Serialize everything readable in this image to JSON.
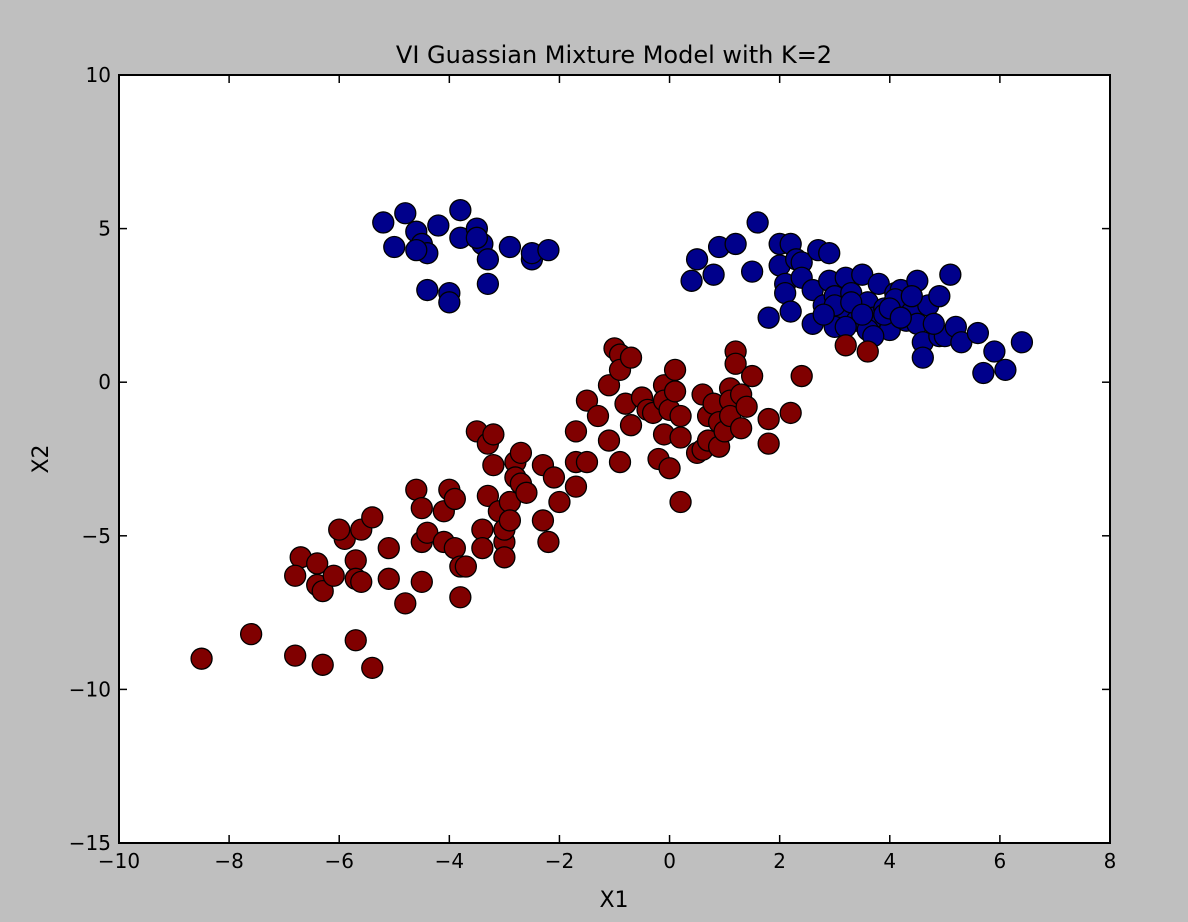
{
  "chart_data": {
    "type": "scatter",
    "title": "VI Guassian Mixture Model with K=2",
    "xlabel": "X1",
    "ylabel": "X2",
    "xlim": [
      -10,
      8
    ],
    "ylim": [
      -15,
      10
    ],
    "xticks": [
      -10,
      -8,
      -6,
      -4,
      -2,
      0,
      2,
      4,
      6,
      8
    ],
    "yticks": [
      -15,
      -10,
      -5,
      0,
      5,
      10
    ],
    "grid": false,
    "colors": {
      "cluster_blue": "#00008b",
      "cluster_red": "#800000",
      "edge": "#000000",
      "axes_bg": "#ffffff",
      "figure_bg": "#bfbfbf"
    },
    "series": [
      {
        "color": "#00008b",
        "points": [
          [
            -5.2,
            5.2
          ],
          [
            -4.8,
            5.5
          ],
          [
            -5.0,
            4.4
          ],
          [
            -4.6,
            4.9
          ],
          [
            -4.5,
            4.5
          ],
          [
            -4.4,
            4.2
          ],
          [
            -4.6,
            4.3
          ],
          [
            -4.2,
            5.1
          ],
          [
            -3.8,
            5.6
          ],
          [
            -3.8,
            4.7
          ],
          [
            -3.5,
            5.0
          ],
          [
            -3.4,
            4.5
          ],
          [
            -3.3,
            4.0
          ],
          [
            -3.5,
            4.7
          ],
          [
            -2.9,
            4.4
          ],
          [
            -2.5,
            4.0
          ],
          [
            -2.5,
            4.2
          ],
          [
            -2.2,
            4.3
          ],
          [
            -4.4,
            3.0
          ],
          [
            -4.0,
            2.9
          ],
          [
            -4.0,
            2.6
          ],
          [
            -3.3,
            3.2
          ],
          [
            0.4,
            3.3
          ],
          [
            0.5,
            4.0
          ],
          [
            0.8,
            3.5
          ],
          [
            0.9,
            4.4
          ],
          [
            1.2,
            4.5
          ],
          [
            1.5,
            3.6
          ],
          [
            1.6,
            5.2
          ],
          [
            1.8,
            2.1
          ],
          [
            2.0,
            4.5
          ],
          [
            2.0,
            3.8
          ],
          [
            2.1,
            3.2
          ],
          [
            2.2,
            4.5
          ],
          [
            2.1,
            2.9
          ],
          [
            2.2,
            2.3
          ],
          [
            2.3,
            4.0
          ],
          [
            2.4,
            3.9
          ],
          [
            2.4,
            3.4
          ],
          [
            2.6,
            3.0
          ],
          [
            2.7,
            4.3
          ],
          [
            2.8,
            2.5
          ],
          [
            2.9,
            4.2
          ],
          [
            2.9,
            3.3
          ],
          [
            3.0,
            2.8
          ],
          [
            3.1,
            2.2
          ],
          [
            3.0,
            1.8
          ],
          [
            3.2,
            3.4
          ],
          [
            3.3,
            2.9
          ],
          [
            3.4,
            2.0
          ],
          [
            3.5,
            3.5
          ],
          [
            3.6,
            2.6
          ],
          [
            3.7,
            2.1
          ],
          [
            3.8,
            3.2
          ],
          [
            3.9,
            2.4
          ],
          [
            4.0,
            1.7
          ],
          [
            4.1,
            2.9
          ],
          [
            4.2,
            3.0
          ],
          [
            4.3,
            2.0
          ],
          [
            4.4,
            2.3
          ],
          [
            4.5,
            3.3
          ],
          [
            4.5,
            1.9
          ],
          [
            4.6,
            1.3
          ],
          [
            4.6,
            0.8
          ],
          [
            4.7,
            2.5
          ],
          [
            4.9,
            1.5
          ],
          [
            4.9,
            2.8
          ],
          [
            5.1,
            3.5
          ],
          [
            5.0,
            1.5
          ],
          [
            5.2,
            1.8
          ],
          [
            5.3,
            1.3
          ],
          [
            5.6,
            1.6
          ],
          [
            5.7,
            0.3
          ],
          [
            5.9,
            1.0
          ],
          [
            6.1,
            0.4
          ],
          [
            6.4,
            1.3
          ],
          [
            3.0,
            2.5
          ],
          [
            3.3,
            2.6
          ],
          [
            3.6,
            1.7
          ],
          [
            3.9,
            2.2
          ],
          [
            4.1,
            2.7
          ],
          [
            4.4,
            2.8
          ],
          [
            2.6,
            1.9
          ],
          [
            2.8,
            2.2
          ],
          [
            3.5,
            2.2
          ],
          [
            3.7,
            1.5
          ],
          [
            4.0,
            2.4
          ],
          [
            4.2,
            2.1
          ],
          [
            4.8,
            1.9
          ],
          [
            3.2,
            1.8
          ]
        ]
      },
      {
        "color": "#800000",
        "points": [
          [
            -8.5,
            -9.0
          ],
          [
            -7.6,
            -8.2
          ],
          [
            -6.8,
            -8.9
          ],
          [
            -6.3,
            -9.2
          ],
          [
            -5.7,
            -8.4
          ],
          [
            -5.4,
            -9.3
          ],
          [
            -6.7,
            -5.7
          ],
          [
            -6.8,
            -6.3
          ],
          [
            -6.4,
            -5.9
          ],
          [
            -6.4,
            -6.6
          ],
          [
            -6.3,
            -6.8
          ],
          [
            -6.1,
            -6.3
          ],
          [
            -5.9,
            -5.1
          ],
          [
            -6.0,
            -4.8
          ],
          [
            -5.7,
            -5.8
          ],
          [
            -5.7,
            -6.4
          ],
          [
            -5.6,
            -6.5
          ],
          [
            -5.6,
            -4.8
          ],
          [
            -5.4,
            -4.4
          ],
          [
            -5.1,
            -5.4
          ],
          [
            -5.1,
            -6.4
          ],
          [
            -4.8,
            -7.2
          ],
          [
            -4.6,
            -3.5
          ],
          [
            -4.5,
            -4.1
          ],
          [
            -4.5,
            -5.2
          ],
          [
            -4.5,
            -6.5
          ],
          [
            -4.4,
            -4.9
          ],
          [
            -4.1,
            -4.2
          ],
          [
            -4.1,
            -5.2
          ],
          [
            -4.0,
            -3.5
          ],
          [
            -3.9,
            -5.4
          ],
          [
            -3.9,
            -3.8
          ],
          [
            -3.8,
            -6.0
          ],
          [
            -3.8,
            -7.0
          ],
          [
            -3.7,
            -6.0
          ],
          [
            -3.5,
            -1.6
          ],
          [
            -3.4,
            -4.8
          ],
          [
            -3.4,
            -5.4
          ],
          [
            -3.3,
            -2.0
          ],
          [
            -3.3,
            -3.7
          ],
          [
            -3.2,
            -1.7
          ],
          [
            -3.2,
            -2.7
          ],
          [
            -3.1,
            -4.2
          ],
          [
            -3.0,
            -5.2
          ],
          [
            -3.0,
            -5.7
          ],
          [
            -3.0,
            -4.8
          ],
          [
            -2.9,
            -3.9
          ],
          [
            -2.9,
            -4.5
          ],
          [
            -2.8,
            -2.6
          ],
          [
            -2.8,
            -3.1
          ],
          [
            -2.7,
            -3.3
          ],
          [
            -2.7,
            -2.3
          ],
          [
            -2.6,
            -3.6
          ],
          [
            -2.3,
            -4.5
          ],
          [
            -2.3,
            -2.7
          ],
          [
            -2.2,
            -5.2
          ],
          [
            -2.1,
            -3.1
          ],
          [
            -2.0,
            -3.9
          ],
          [
            -1.7,
            -1.6
          ],
          [
            -1.7,
            -2.6
          ],
          [
            -1.7,
            -3.4
          ],
          [
            -1.5,
            -0.6
          ],
          [
            -1.5,
            -2.6
          ],
          [
            -1.3,
            -1.1
          ],
          [
            -1.1,
            -0.1
          ],
          [
            -1.1,
            -1.9
          ],
          [
            -1.0,
            1.1
          ],
          [
            -0.9,
            0.9
          ],
          [
            -0.9,
            -2.6
          ],
          [
            -0.9,
            0.4
          ],
          [
            -0.8,
            -0.7
          ],
          [
            -0.7,
            -1.4
          ],
          [
            -0.7,
            0.8
          ],
          [
            -0.5,
            -0.5
          ],
          [
            -0.4,
            -0.9
          ],
          [
            -0.3,
            -1.0
          ],
          [
            -0.2,
            -2.5
          ],
          [
            -0.1,
            -0.1
          ],
          [
            -0.1,
            -1.7
          ],
          [
            -0.1,
            -0.6
          ],
          [
            0.0,
            -0.9
          ],
          [
            0.0,
            -2.8
          ],
          [
            0.1,
            -0.3
          ],
          [
            0.1,
            0.4
          ],
          [
            0.2,
            -1.1
          ],
          [
            0.2,
            -1.8
          ],
          [
            0.2,
            -3.9
          ],
          [
            0.5,
            -2.3
          ],
          [
            0.6,
            -0.4
          ],
          [
            0.6,
            -2.2
          ],
          [
            0.7,
            -1.9
          ],
          [
            0.7,
            -1.1
          ],
          [
            0.8,
            -0.7
          ],
          [
            0.9,
            -2.1
          ],
          [
            0.9,
            -1.3
          ],
          [
            1.0,
            -1.6
          ],
          [
            1.1,
            -0.2
          ],
          [
            1.1,
            -0.6
          ],
          [
            1.1,
            -1.1
          ],
          [
            1.2,
            1.0
          ],
          [
            1.2,
            0.6
          ],
          [
            1.3,
            -1.5
          ],
          [
            1.3,
            -0.4
          ],
          [
            1.4,
            -0.8
          ],
          [
            1.5,
            0.2
          ],
          [
            1.8,
            -1.2
          ],
          [
            1.8,
            -2.0
          ],
          [
            2.2,
            -1.0
          ],
          [
            2.4,
            0.2
          ],
          [
            3.2,
            1.2
          ],
          [
            3.6,
            1.0
          ]
        ]
      }
    ]
  }
}
